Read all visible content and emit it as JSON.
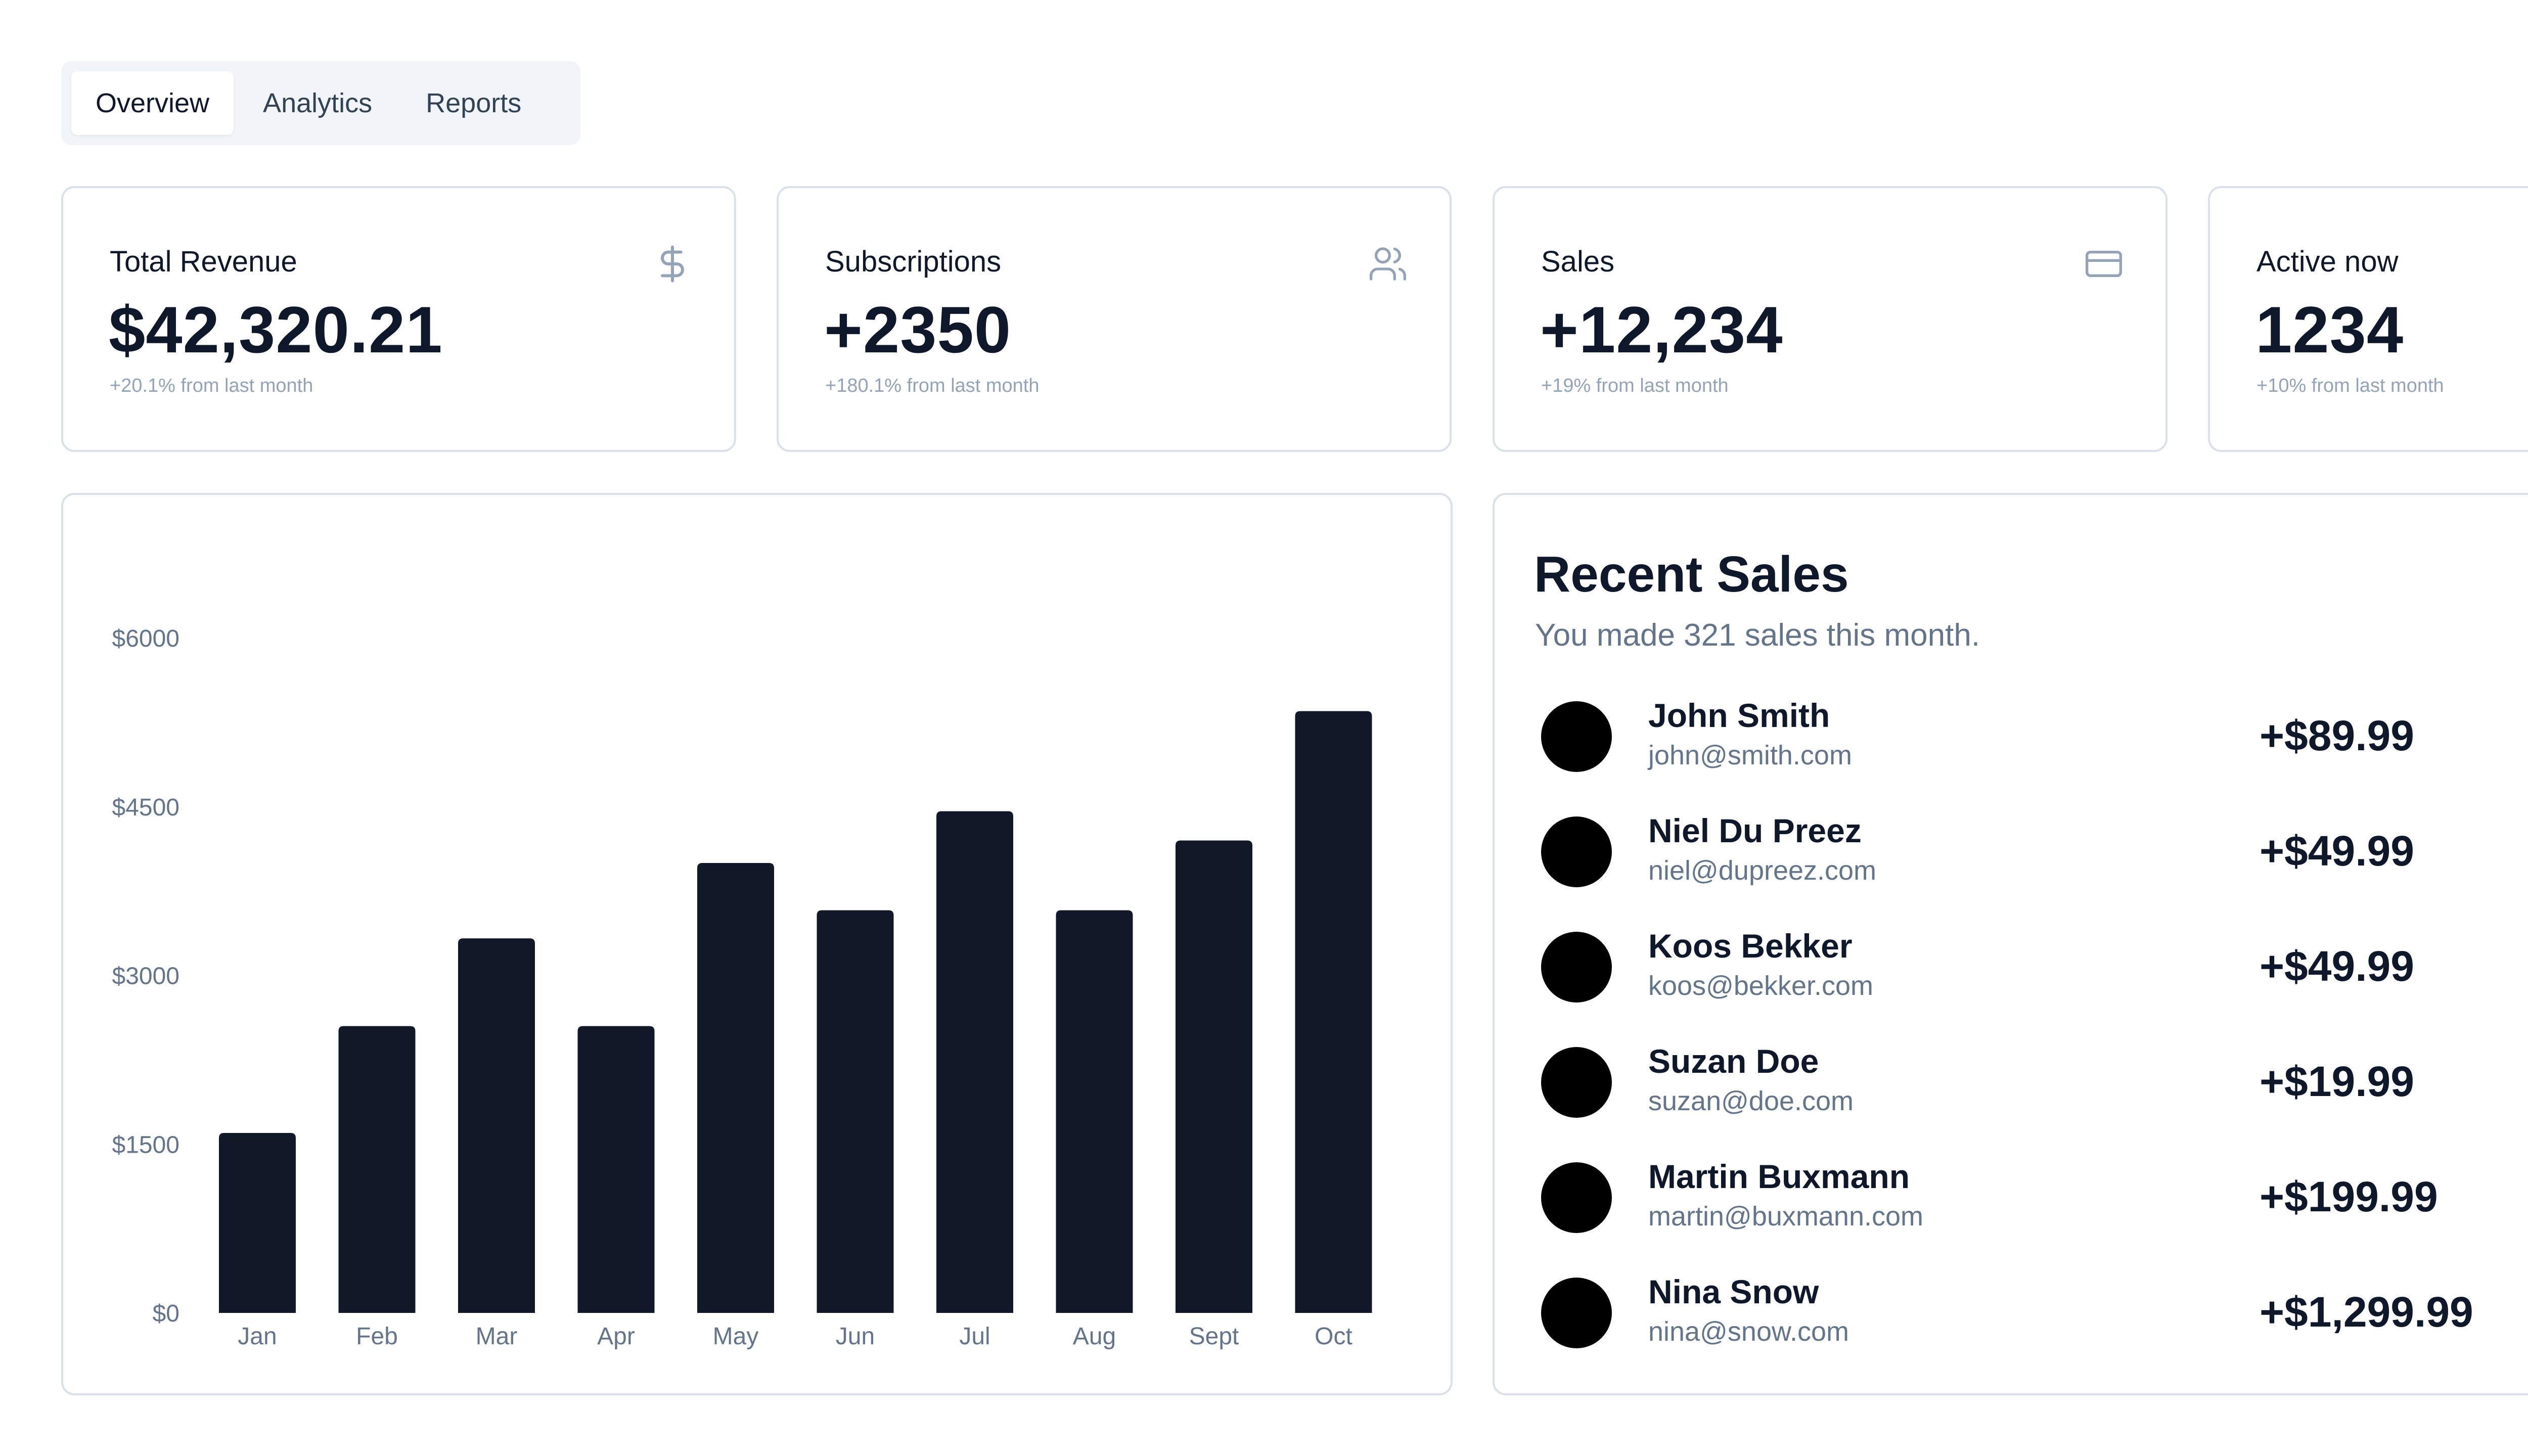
{
  "tabs": [
    {
      "label": "Overview",
      "active": true
    },
    {
      "label": "Analytics",
      "active": false
    },
    {
      "label": "Reports",
      "active": false
    }
  ],
  "stats": [
    {
      "label": "Total Revenue",
      "value": "$42,320.21",
      "change": "+20.1% from last month",
      "icon": "dollar-icon"
    },
    {
      "label": "Subscriptions",
      "value": "+2350",
      "change": "+180.1% from last month",
      "icon": "users-icon"
    },
    {
      "label": "Sales",
      "value": "+12,234",
      "change": "+19% from last month",
      "icon": "credit-card-icon"
    },
    {
      "label": "Active now",
      "value": "1234",
      "change": "+10% from last month",
      "icon": "activity-icon"
    }
  ],
  "chart_data": {
    "type": "bar",
    "title": "",
    "xlabel": "",
    "ylabel": "",
    "categories": [
      "Jan",
      "Feb",
      "Mar",
      "Apr",
      "May",
      "Jun",
      "Jul",
      "Aug",
      "Sept",
      "Oct"
    ],
    "values": [
      1600,
      2550,
      3330,
      2550,
      4000,
      3580,
      4460,
      3580,
      4200,
      5350
    ],
    "ylim": [
      0,
      6000
    ],
    "yticks": [
      0,
      1500,
      3000,
      4500,
      6000
    ],
    "ytick_labels": [
      "$0",
      "$1500",
      "$3000",
      "$4500",
      "$6000"
    ],
    "grid": false,
    "legend": "none",
    "bar_color": "#111827"
  },
  "recent_sales": {
    "title": "Recent Sales",
    "subtitle": "You made 321 sales this month.",
    "items": [
      {
        "name": "John Smith",
        "email": "john@smith.com",
        "amount": "+$89.99"
      },
      {
        "name": "Niel Du Preez",
        "email": "niel@dupreez.com",
        "amount": "+$49.99"
      },
      {
        "name": "Koos Bekker",
        "email": "koos@bekker.com",
        "amount": "+$49.99"
      },
      {
        "name": "Suzan Doe",
        "email": "suzan@doe.com",
        "amount": "+$19.99"
      },
      {
        "name": "Martin Buxmann",
        "email": "martin@buxmann.com",
        "amount": "+$199.99"
      },
      {
        "name": "Nina Snow",
        "email": "nina@snow.com",
        "amount": "+$1,299.99"
      }
    ]
  },
  "colors": {
    "text": "#0f172a",
    "muted": "#64748b",
    "border": "#dbe1ea",
    "tab_bg": "#f1f5f9",
    "icon": "#94a3b8"
  }
}
